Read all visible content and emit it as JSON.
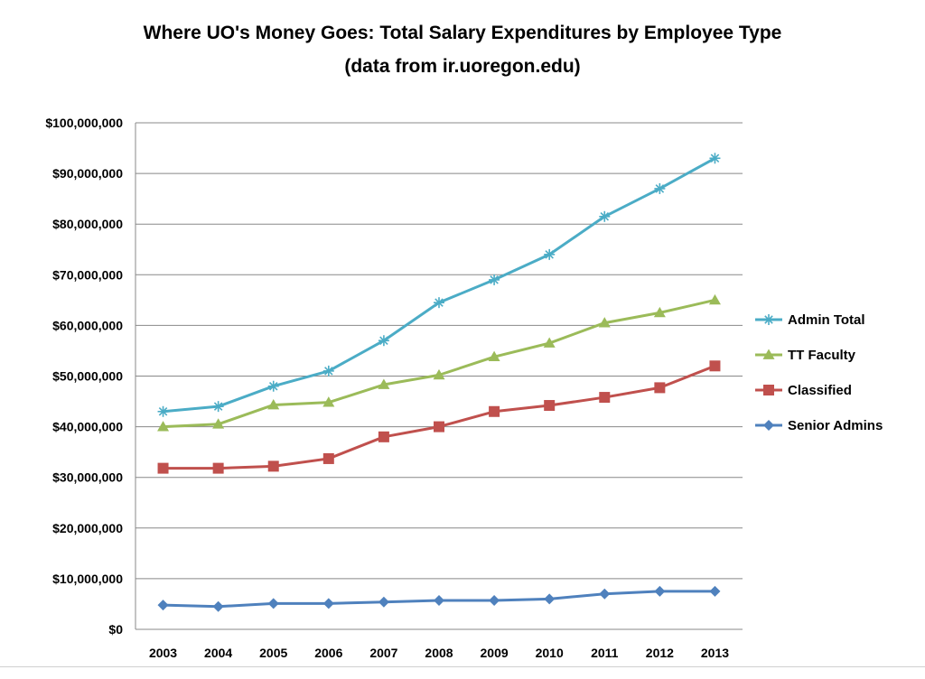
{
  "chart_data": {
    "type": "line",
    "title": "Where UO's Money Goes: Total Salary Expenditures by Employee Type",
    "subtitle": "(data from ir.uoregon.edu)",
    "x": [
      "2003",
      "2004",
      "2005",
      "2006",
      "2007",
      "2008",
      "2009",
      "2010",
      "2011",
      "2012",
      "2013"
    ],
    "ylim": [
      0,
      100000000
    ],
    "yticks": [
      0,
      10000000,
      20000000,
      30000000,
      40000000,
      50000000,
      60000000,
      70000000,
      80000000,
      90000000,
      100000000
    ],
    "ytick_labels": [
      "$0",
      "$10,000,000",
      "$20,000,000",
      "$30,000,000",
      "$40,000,000",
      "$50,000,000",
      "$60,000,000",
      "$70,000,000",
      "$80,000,000",
      "$90,000,000",
      "$100,000,000"
    ],
    "xlabel": "",
    "ylabel": "",
    "grid": "horizontal",
    "legend_position": "right",
    "series": [
      {
        "name": "Admin Total",
        "color": "#4bacc6",
        "marker": "asterisk",
        "values": [
          43000000,
          44000000,
          48000000,
          51000000,
          57000000,
          64500000,
          69000000,
          74000000,
          81500000,
          87000000,
          93000000
        ]
      },
      {
        "name": "TT Faculty",
        "color": "#9bbb59",
        "marker": "triangle",
        "values": [
          40000000,
          40500000,
          44300000,
          44800000,
          48300000,
          50200000,
          53800000,
          56500000,
          60500000,
          62500000,
          65000000
        ]
      },
      {
        "name": "Classified",
        "color": "#c0504d",
        "marker": "square",
        "values": [
          31800000,
          31800000,
          32200000,
          33700000,
          38000000,
          40000000,
          43000000,
          44200000,
          45800000,
          47700000,
          52000000
        ]
      },
      {
        "name": "Senior Admins",
        "color": "#4f81bd",
        "marker": "diamond",
        "values": [
          4800000,
          4500000,
          5100000,
          5100000,
          5400000,
          5700000,
          5700000,
          6000000,
          7000000,
          7500000,
          7500000
        ]
      }
    ]
  }
}
